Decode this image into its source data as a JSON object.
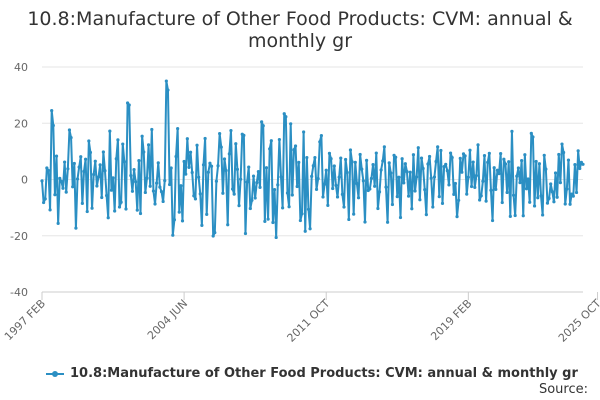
{
  "chart_data": {
    "type": "line",
    "title_line1": "10.8:Manufacture of Other Food Products: CVM: annual &",
    "title_line2": "monthly gr",
    "ylim": [
      -40,
      40
    ],
    "yticks": [
      "40",
      "20",
      "0",
      "-20",
      "-40"
    ],
    "ytick_values": [
      40,
      20,
      0,
      -20,
      -40
    ],
    "x_range": [
      "1997 FEB",
      "2025 OCT"
    ],
    "xticks": [
      {
        "label": "1997 FEB",
        "month_index": 0
      },
      {
        "label": "2004 JUN",
        "month_index": 88
      },
      {
        "label": "2011 OCT",
        "month_index": 176
      },
      {
        "label": "2019 FEB",
        "month_index": 264
      },
      {
        "label": "2025 OCT",
        "month_index": 344
      }
    ],
    "grid": true,
    "legend_position": "bottom-left",
    "series": [
      {
        "name": "10.8:Manufacture of Other Food Products: CVM: annual & monthly gr",
        "color": "#2b8fc3",
        "values": [
          -0.5,
          -8.2,
          -6.9,
          4.1,
          3.2,
          -10.8,
          24.5,
          19.2,
          -5.4,
          8.3,
          -15.6,
          0.4,
          -0.7,
          -3.1,
          6.2,
          -4.5,
          3.8,
          17.6,
          14.9,
          -2.6,
          5.7,
          -17.3,
          0.2,
          4.4,
          8.1,
          -8.5,
          2.9,
          7.2,
          -11.4,
          13.7,
          9.6,
          -10.2,
          1.8,
          6.5,
          -2.3,
          0.9,
          5.2,
          -6.4,
          9.8,
          3.1,
          -5.7,
          -13.6,
          17.2,
          -3.8,
          0.6,
          -11.2,
          7.4,
          14.1,
          -9.8,
          -8.1,
          12.6,
          6.3,
          -10.5,
          27.2,
          26.5,
          1.4,
          -4.2,
          3.5,
          -0.8,
          -10.9,
          6.7,
          -12.1,
          15.4,
          9.8,
          -4.6,
          0.5,
          12.3,
          -2.4,
          17.8,
          -4.1,
          -8.7,
          -1.3,
          5.9,
          -2.7,
          -4.3,
          -7.8,
          -0.4,
          35.0,
          31.8,
          -1.8,
          4.1,
          -19.8,
          -14.3,
          8.2,
          18.1,
          -11.6,
          -2.2,
          -14.7,
          6.4,
          1.9,
          14.5,
          4.3,
          9.7,
          2.5,
          -5.8,
          -6.9,
          12.2,
          0.8,
          -5.1,
          -16.3,
          5.2,
          14.6,
          -12.4,
          2.6,
          5.8,
          4.7,
          -20.1,
          -18.9,
          -0.6,
          4.9,
          16.3,
          11.5,
          -4.9,
          7.3,
          3.2,
          -16.1,
          9.1,
          17.4,
          -3.4,
          -5.2,
          12.7,
          3.6,
          -9.3,
          0.1,
          16.1,
          15.7,
          -19.2,
          -0.9,
          4.4,
          -10.3,
          -7.4,
          1.2,
          -6.6,
          -1.1,
          2.8,
          -2.8,
          20.5,
          19.1,
          -14.9,
          4.2,
          -14.1,
          10.9,
          13.8,
          -15.3,
          -3.6,
          -20.6,
          -1.9,
          14.2,
          0.9,
          -10.1,
          23.4,
          22.3,
          -4.8,
          -9.7,
          19.8,
          -5.5,
          10.6,
          11.9,
          -2.5,
          6.1,
          -14.6,
          -12.2,
          16.9,
          -18.4,
          7.8,
          -10.6,
          -17.5,
          1.1,
          4.9,
          7.8,
          -3.5,
          0.3,
          13.4,
          15.6,
          -6.2,
          -1.7,
          3.3,
          -9.2,
          9.3,
          7.4,
          -3.2,
          4.8,
          -2.1,
          -6.2,
          0.8,
          7.6,
          -5.3,
          -9.8,
          7.1,
          2.5,
          -14.2,
          10.5,
          6.3,
          -12.3,
          6.1,
          -1.4,
          -6.5,
          8.9,
          3.7,
          -0.5,
          -15.1,
          6.8,
          -3.9,
          -3.4,
          0.4,
          5.3,
          -2.4,
          9.4,
          -10.3,
          -4.4,
          3.4,
          6.6,
          11.6,
          -2.7,
          -15.2,
          5.9,
          2.3,
          -8.9,
          8.6,
          7.9,
          -6.1,
          0.8,
          -13.5,
          7.4,
          -1.2,
          5.6,
          2.8,
          -5.9,
          2.6,
          -10.4,
          8.8,
          -4.1,
          0.9,
          11.3,
          -7.2,
          7.6,
          3.9,
          -3.6,
          -12.5,
          5.5,
          8.2,
          0.5,
          -9.8,
          0.9,
          6.4,
          11.6,
          -6.1,
          10.3,
          -8.5,
          4.6,
          5.4,
          3.1,
          -1.9,
          9.4,
          7.8,
          -5.3,
          -1.4,
          -13.2,
          -7.4,
          7.5,
          2.6,
          9.1,
          8.4,
          -5.2,
          0.8,
          10.4,
          -2.5,
          6.2,
          -2.8,
          1.4,
          12.3,
          -7.3,
          -5.8,
          -0.6,
          8.5,
          -7.7,
          6.1,
          9.3,
          -3.8,
          -14.6,
          4.2,
          -3.5,
          3.3,
          2.1,
          9.2,
          -8.2,
          7.2,
          5.5,
          -4.6,
          6.3,
          -13.1,
          17.1,
          -5.6,
          -12.8,
          1.2,
          4.1,
          -1.1,
          6.7,
          -12.9,
          8.8,
          -3.3,
          0.2,
          -8.1,
          16.4,
          15.1,
          -9.4,
          6.4,
          -6.5,
          5.6,
          -5.8,
          -12.6,
          8.6,
          3.7,
          -8.4,
          -6.7,
          -1.6,
          -4.4,
          -7.9,
          2.3,
          -6.3,
          8.9,
          -1.1,
          12.6,
          9.6,
          -8.7,
          -3.4,
          6.9,
          -8.8,
          -5.2,
          -5.9,
          5.3,
          -4.6,
          10.2,
          3.9,
          6.1,
          5.4
        ]
      }
    ]
  },
  "legend": {
    "label": "10.8:Manufacture of Other Food Products: CVM: annual & monthly gr"
  },
  "source": {
    "label": "Source:"
  }
}
